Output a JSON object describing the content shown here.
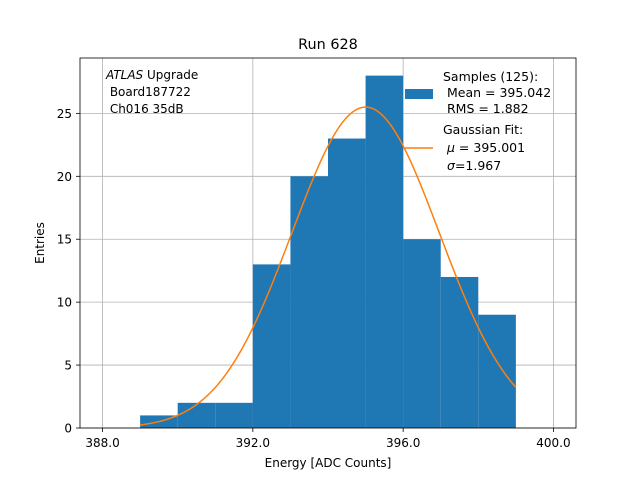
{
  "chart_data": {
    "type": "bar",
    "title": "Run 628",
    "xlabel": "Energy [ADC Counts]",
    "ylabel": "Entries",
    "xlim": [
      387.4,
      400.6
    ],
    "ylim": [
      0,
      29.4
    ],
    "grid": true,
    "x_ticks": [
      388.0,
      392.0,
      396.0,
      400.0
    ],
    "x_tick_labels": [
      "388.0",
      "392.0",
      "396.0",
      "400.0"
    ],
    "y_ticks": [
      0,
      5,
      10,
      15,
      20,
      25
    ],
    "y_tick_labels": [
      "0",
      "5",
      "10",
      "15",
      "20",
      "25"
    ],
    "bins": [
      {
        "x0": 389,
        "x1": 390,
        "count": 1
      },
      {
        "x0": 390,
        "x1": 391,
        "count": 2
      },
      {
        "x0": 391,
        "x1": 392,
        "count": 2
      },
      {
        "x0": 392,
        "x1": 393,
        "count": 13
      },
      {
        "x0": 393,
        "x1": 394,
        "count": 20
      },
      {
        "x0": 394,
        "x1": 395,
        "count": 23
      },
      {
        "x0": 395,
        "x1": 396,
        "count": 28
      },
      {
        "x0": 396,
        "x1": 397,
        "count": 15
      },
      {
        "x0": 397,
        "x1": 398,
        "count": 12
      },
      {
        "x0": 398,
        "x1": 399,
        "count": 9
      }
    ],
    "fit": {
      "type": "gaussian",
      "mu": 395.001,
      "sigma": 1.967,
      "amplitude": 25.5,
      "x_range": [
        389,
        399
      ]
    },
    "colors": {
      "histogram": "#1f77b4",
      "fit": "#ff7f0e",
      "grid": "#b0b0b0"
    },
    "annotation": {
      "italic": "ATLAS",
      "line1_rest": " Upgrade",
      "line2": " Board187722",
      "line3": " Ch016 35dB"
    },
    "legend": {
      "placement": "top-right",
      "samples_title": "Samples (125):",
      "samples_mean": " Mean = 395.042",
      "samples_rms": " RMS = 1.882",
      "fit_title": "Gaussian Fit:",
      "fit_mu_symbol": "μ",
      "fit_mu_rest": " = 395.001",
      "fit_sigma_symbol": "σ",
      "fit_sigma_rest": "=1.967"
    }
  }
}
